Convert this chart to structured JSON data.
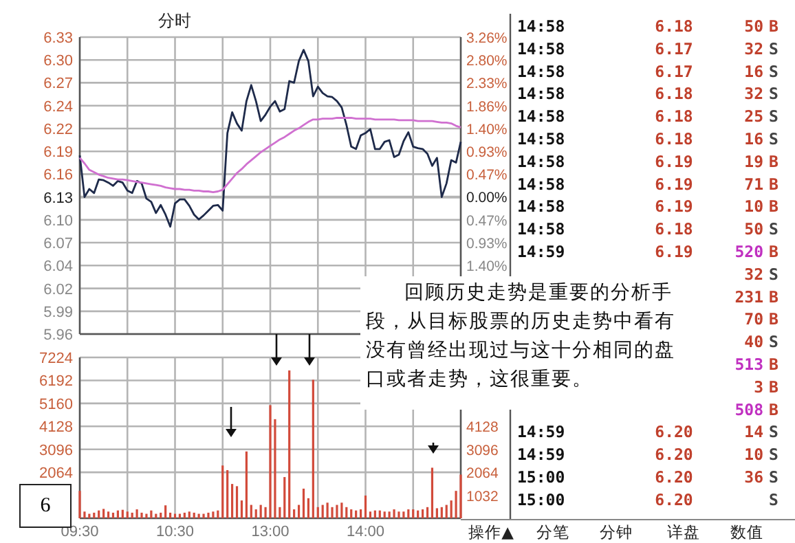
{
  "chart_data": [
    {
      "type": "line",
      "title": "分时",
      "categories": [
        null,
        null,
        null,
        null,
        null,
        null,
        null,
        null,
        null,
        null,
        null,
        null,
        null,
        null,
        null,
        null,
        null,
        null,
        null,
        null,
        null,
        null,
        null,
        null,
        null,
        null,
        null,
        null,
        null,
        null,
        null,
        null,
        null,
        null,
        null,
        null,
        null,
        null,
        null,
        null,
        null,
        null,
        null,
        null,
        null,
        null,
        null,
        null,
        null,
        null,
        null,
        null,
        null,
        null,
        null,
        null,
        null,
        null,
        null,
        null,
        null,
        null,
        null,
        null,
        null,
        null,
        null,
        null,
        null,
        null,
        null,
        null,
        null,
        null,
        null,
        null,
        null,
        null,
        null,
        null,
        null
      ],
      "ylim": [
        5.9586,
        6.33
      ],
      "yticks": [
        6.33,
        {
          "value": 6.3014,
          "label": "6.30"
        },
        {
          "value": 6.2729,
          "label": "6.27"
        },
        {
          "value": 6.2443,
          "label": "6.24"
        },
        {
          "value": 6.2157,
          "label": "6.22"
        },
        {
          "value": 6.1871,
          "label": "6.19"
        },
        {
          "value": 6.1586,
          "label": "6.16"
        },
        6.13,
        {
          "value": 6.1014,
          "label": "6.10"
        },
        {
          "value": 6.0729,
          "label": "6.07"
        },
        {
          "value": 6.0443,
          "label": "6.04"
        },
        {
          "value": 6.0157,
          "label": "6.02"
        },
        {
          "value": 5.9871,
          "label": "5.99"
        },
        {
          "value": 5.9586,
          "label": "5.96"
        }
      ],
      "y2lim": [
        -2.8,
        3.26
      ],
      "y2ticks": [
        {
          "value": 3.26,
          "label": "3.26%"
        },
        {
          "value": 2.8,
          "label": "2.80%"
        },
        {
          "value": 2.33,
          "label": "2.33%"
        },
        {
          "value": 1.86,
          "label": "1.86%"
        },
        {
          "value": 1.4,
          "label": "1.40%"
        },
        {
          "value": 0.93,
          "label": "0.93%"
        },
        {
          "value": 0.47,
          "label": "0.47%"
        },
        {
          "value": 0,
          "label": "0.00%"
        },
        {
          "value": -0.47,
          "label": "0.47%"
        },
        {
          "value": -0.93,
          "label": "0.93%"
        },
        {
          "value": -1.4,
          "label": "1.40%"
        }
      ],
      "grid": true,
      "marker": "none",
      "line_style": "solid",
      "series": [
        {
          "color": "#1e2a4a",
          "values": [
            6.182,
            6.13,
            6.14,
            6.135,
            6.152,
            6.151,
            6.148,
            6.144,
            6.15,
            6.148,
            6.138,
            6.135,
            6.15,
            6.147,
            6.128,
            6.124,
            6.11,
            6.12,
            6.108,
            6.093,
            6.122,
            6.127,
            6.127,
            6.119,
            6.108,
            6.102,
            6.107,
            6.113,
            6.119,
            6.12,
            6.113,
            6.21,
            6.236,
            6.222,
            6.213,
            6.25,
            6.27,
            6.25,
            6.225,
            6.233,
            6.243,
            6.25,
            6.237,
            6.24,
            6.275,
            6.273,
            6.3,
            6.314,
            6.3,
            6.256,
            6.268,
            6.26,
            6.256,
            6.255,
            6.25,
            6.242,
            6.22,
            6.193,
            6.19,
            6.207,
            6.21,
            6.215,
            6.19,
            6.19,
            6.199,
            6.201,
            6.18,
            6.183,
            6.2,
            6.211,
            6.193,
            6.191,
            6.19,
            6.184,
            6.169,
            6.179,
            6.13,
            6.147,
            6.176,
            6.173,
            6.199
          ]
        },
        {
          "color": "#d070d0",
          "values": [
            6.179,
            6.172,
            6.164,
            6.161,
            6.158,
            6.156,
            6.154,
            6.153,
            6.152,
            6.152,
            6.151,
            6.15,
            6.149,
            6.148,
            6.147,
            6.146,
            6.145,
            6.144,
            6.142,
            6.141,
            6.14,
            6.14,
            6.139,
            6.139,
            6.138,
            6.138,
            6.137,
            6.137,
            6.136,
            6.137,
            6.139,
            6.146,
            6.153,
            6.16,
            6.165,
            6.171,
            6.176,
            6.181,
            6.186,
            6.19,
            6.194,
            6.198,
            6.202,
            6.205,
            6.209,
            6.213,
            6.216,
            6.22,
            6.224,
            6.227,
            6.227,
            6.228,
            6.228,
            6.228,
            6.229,
            6.229,
            6.229,
            6.229,
            6.228,
            6.228,
            6.228,
            6.228,
            6.227,
            6.227,
            6.227,
            6.227,
            6.227,
            6.226,
            6.226,
            6.226,
            6.226,
            6.225,
            6.225,
            6.225,
            6.225,
            6.224,
            6.223,
            6.223,
            6.222,
            6.219,
            6.217
          ]
        }
      ],
      "annotations": [
        "回顾历史走势是重要的分析手段，从目标股票的历史走势中看有没有曾经出现过与这十分相同的盘口或者走势，这很重要。"
      ]
    },
    {
      "type": "bar",
      "categories": [
        "09:30",
        null,
        null,
        null,
        null,
        null,
        null,
        null,
        null,
        null,
        null,
        null,
        null,
        null,
        null,
        null,
        null,
        null,
        null,
        null,
        "10:30",
        null,
        null,
        null,
        null,
        null,
        null,
        null,
        null,
        null,
        null,
        null,
        null,
        null,
        null,
        null,
        null,
        null,
        null,
        null,
        "13:00",
        null,
        null,
        null,
        null,
        null,
        null,
        null,
        null,
        null,
        null,
        null,
        null,
        null,
        null,
        null,
        null,
        null,
        null,
        null,
        "14:00",
        null,
        null,
        null,
        null,
        null,
        null,
        null,
        null,
        null,
        null,
        null,
        null,
        null,
        null,
        null,
        null,
        null,
        null,
        null,
        null
      ],
      "ylim": [
        0,
        7224
      ],
      "yticks": [
        2064,
        3096,
        4128,
        5160,
        6192,
        7224
      ],
      "y2lim": [
        0,
        7224
      ],
      "y2ticks": [
        1032,
        2064,
        3096,
        4128
      ],
      "grid": true,
      "values": [
        1230,
        300,
        200,
        250,
        350,
        420,
        300,
        250,
        350,
        380,
        300,
        250,
        400,
        250,
        200,
        350,
        200,
        250,
        580,
        250,
        200,
        200,
        250,
        300,
        250,
        200,
        200,
        250,
        300,
        350,
        2370,
        2160,
        1540,
        1440,
        800,
        3000,
        600,
        400,
        600,
        500,
        5080,
        4450,
        500,
        1850,
        6640,
        400,
        600,
        1330,
        900,
        6220,
        500,
        600,
        700,
        500,
        600,
        700,
        500,
        400,
        350,
        400,
        1020,
        300,
        350,
        350,
        300,
        300,
        400,
        300,
        300,
        400,
        400,
        350,
        400,
        500,
        2270,
        450,
        500,
        600,
        800,
        1230,
        1960
      ],
      "color": "#d24a3a",
      "annotations": [
        "6"
      ]
    },
    {
      "type": "other",
      "cell_labels": [
        [
          "14:58",
          "6.18",
          "50",
          "B"
        ],
        [
          "14:58",
          "6.17",
          "32",
          "S"
        ],
        [
          "14:58",
          "6.17",
          "16",
          "S"
        ],
        [
          "14:58",
          "6.18",
          "32",
          "S"
        ],
        [
          "14:58",
          "6.18",
          "25",
          "S"
        ],
        [
          "14:58",
          "6.18",
          "16",
          "S"
        ],
        [
          "14:58",
          "6.19",
          "19",
          "B"
        ],
        [
          "14:58",
          "6.19",
          "71",
          "B"
        ],
        [
          "14:58",
          "6.19",
          "10",
          "B"
        ],
        [
          "14:58",
          "6.18",
          "50",
          "S"
        ],
        [
          "14:59",
          "6.19",
          "520",
          "B"
        ],
        [
          null,
          null,
          "32",
          "S"
        ],
        [
          null,
          null,
          "231",
          "B"
        ],
        [
          null,
          null,
          "70",
          "B"
        ],
        [
          null,
          null,
          "40",
          "S"
        ],
        [
          null,
          null,
          "513",
          "B"
        ],
        [
          null,
          null,
          "3",
          "B"
        ],
        [
          null,
          null,
          "508",
          "B"
        ],
        [
          "14:59",
          "6.20",
          "14",
          "S"
        ],
        [
          "14:59",
          "6.20",
          "10",
          "S"
        ],
        [
          "15:00",
          "6.20",
          "36",
          "S"
        ],
        [
          "15:00",
          "6.20",
          null,
          "S"
        ]
      ],
      "annotations": [
        "操作▲",
        "分笔",
        "分钟",
        "详盘",
        "数值"
      ]
    }
  ]
}
